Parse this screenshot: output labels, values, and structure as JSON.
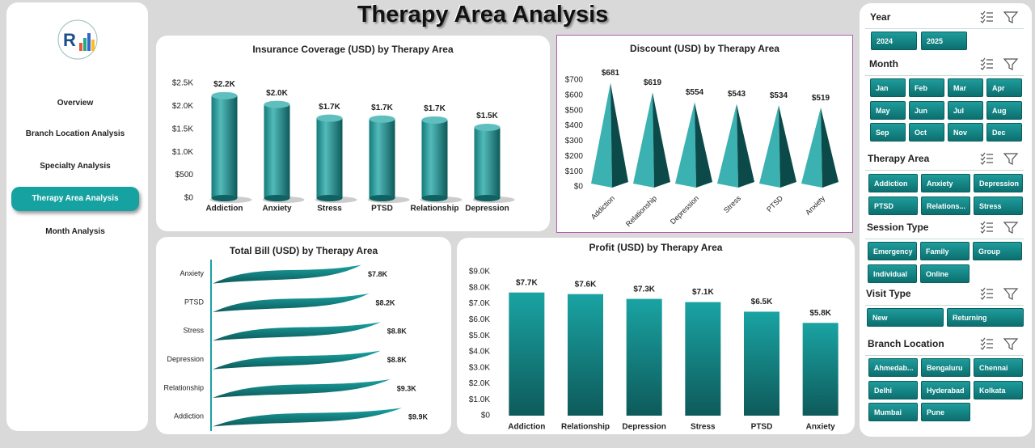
{
  "header": {
    "title": "Therapy Area Analysis"
  },
  "navigation": {
    "items": [
      {
        "label": "Overview",
        "active": false
      },
      {
        "label": "Branch Location Analysis",
        "active": false
      },
      {
        "label": "Specialty Analysis",
        "active": false
      },
      {
        "label": "Therapy Area Analysis",
        "active": true
      },
      {
        "label": "Month Analysis",
        "active": false
      }
    ]
  },
  "slicers": [
    {
      "title": "Year",
      "options": [
        "2024",
        "2025"
      ]
    },
    {
      "title": "Month",
      "options": [
        "Jan",
        "Feb",
        "Mar",
        "Apr",
        "May",
        "Jun",
        "Jul",
        "Aug",
        "Sep",
        "Oct",
        "Nov",
        "Dec"
      ]
    },
    {
      "title": "Therapy Area",
      "options": [
        "Addiction",
        "Anxiety",
        "Depression",
        "PTSD",
        "Relations...",
        "Stress"
      ]
    },
    {
      "title": "Session Type",
      "options": [
        "Emergency",
        "Family",
        "Group",
        "Individual",
        "Online"
      ]
    },
    {
      "title": "Visit Type",
      "options": [
        "New",
        "Returning"
      ]
    },
    {
      "title": "Branch Location",
      "options": [
        "Ahmedab...",
        "Bengaluru",
        "Chennai",
        "Delhi",
        "Hyderabad",
        "Kolkata",
        "Mumbai",
        "Pune"
      ]
    }
  ],
  "chart_data": [
    {
      "type": "bar",
      "bar_shape": "cylinder",
      "title": "Insurance Coverage (USD) by Therapy Area",
      "color": "#1aa3a3",
      "categories": [
        "Addiction",
        "Anxiety",
        "Stress",
        "PTSD",
        "Relationship",
        "Depression"
      ],
      "values": [
        2230,
        2040,
        1740,
        1720,
        1700,
        1540
      ],
      "value_labels": [
        "$2.2K",
        "$2.0K",
        "$1.7K",
        "$1.7K",
        "$1.7K",
        "$1.5K"
      ],
      "ylim": [
        0,
        2500
      ],
      "yticks": [
        {
          "value": 0,
          "label": "$0"
        },
        {
          "value": 500,
          "label": "$500"
        },
        {
          "value": 1000,
          "label": "$1.0K"
        },
        {
          "value": 1500,
          "label": "$1.5K"
        },
        {
          "value": 2000,
          "label": "$2.0K"
        },
        {
          "value": 2500,
          "label": "$2.5K"
        }
      ]
    },
    {
      "type": "bar",
      "bar_shape": "pyramid",
      "title": "Discount (USD) by Therapy Area",
      "color": "#1aa3a3",
      "categories": [
        "Addiction",
        "Relationship",
        "Depression",
        "Stress",
        "PTSD",
        "Anxiety"
      ],
      "values": [
        681,
        619,
        554,
        543,
        534,
        519
      ],
      "value_labels": [
        "$681",
        "$619",
        "$554",
        "$543",
        "$534",
        "$519"
      ],
      "ylim": [
        0,
        700
      ],
      "yticks": [
        {
          "value": 0,
          "label": "$0"
        },
        {
          "value": 100,
          "label": "$100"
        },
        {
          "value": 200,
          "label": "$200"
        },
        {
          "value": 300,
          "label": "$300"
        },
        {
          "value": 400,
          "label": "$400"
        },
        {
          "value": 500,
          "label": "$500"
        },
        {
          "value": 600,
          "label": "$600"
        },
        {
          "value": 700,
          "label": "$700"
        }
      ]
    },
    {
      "type": "barh",
      "bar_shape": "wave",
      "title": "Total Bill (USD) by Therapy Area",
      "color": "#1aa3a3",
      "categories": [
        "Anxiety",
        "PTSD",
        "Stress",
        "Depression",
        "Relationship",
        "Addiction"
      ],
      "values": [
        7800,
        8200,
        8800,
        8800,
        9300,
        9900
      ],
      "value_labels": [
        "$7.8K",
        "$8.2K",
        "$8.8K",
        "$8.8K",
        "$9.3K",
        "$9.9K"
      ]
    },
    {
      "type": "bar",
      "bar_shape": "flat",
      "title": "Profit (USD) by Therapy Area",
      "color": "#1aa3a3",
      "categories": [
        "Addiction",
        "Relationship",
        "Depression",
        "Stress",
        "PTSD",
        "Anxiety"
      ],
      "values": [
        7700,
        7600,
        7300,
        7100,
        6500,
        5800
      ],
      "value_labels": [
        "$7.7K",
        "$7.6K",
        "$7.3K",
        "$7.1K",
        "$6.5K",
        "$5.8K"
      ],
      "ylim": [
        0,
        9000
      ],
      "yticks": [
        {
          "value": 0,
          "label": "$0"
        },
        {
          "value": 1000,
          "label": "$1.0K"
        },
        {
          "value": 2000,
          "label": "$2.0K"
        },
        {
          "value": 3000,
          "label": "$3.0K"
        },
        {
          "value": 4000,
          "label": "$4.0K"
        },
        {
          "value": 5000,
          "label": "$5.0K"
        },
        {
          "value": 6000,
          "label": "$6.0K"
        },
        {
          "value": 7000,
          "label": "$7.0K"
        },
        {
          "value": 8000,
          "label": "$8.0K"
        },
        {
          "value": 9000,
          "label": "$9.0K"
        }
      ]
    }
  ]
}
